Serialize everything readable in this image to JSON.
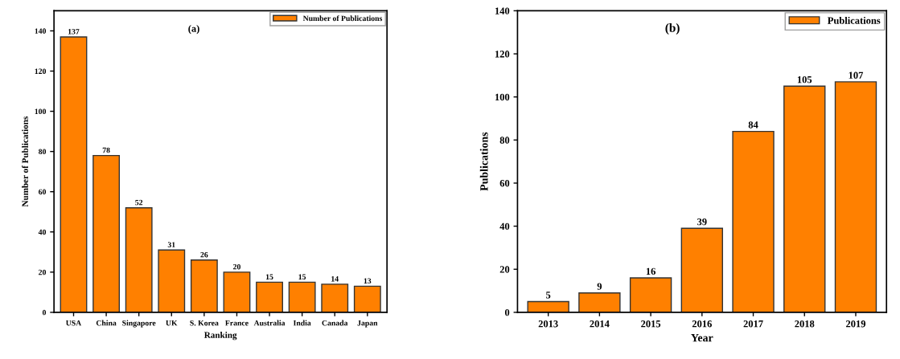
{
  "chart_data": [
    {
      "type": "bar",
      "xlabel": "Ranking",
      "ylabel": "Number of Publications",
      "annotations": [
        "(a)"
      ],
      "categories": [
        "USA",
        "China",
        "Singapore",
        "UK",
        "S. Korea",
        "France",
        "Australia",
        "India",
        "Canada",
        "Japan"
      ],
      "series": [
        {
          "name": "Number of Publications",
          "color": "#ff8000",
          "values": [
            137,
            78,
            52,
            31,
            26,
            20,
            15,
            15,
            14,
            13
          ]
        }
      ],
      "ylim": [
        0,
        150
      ],
      "yticks": [
        0,
        20,
        40,
        60,
        80,
        100,
        120,
        140
      ],
      "data_labels": true,
      "legend": "top right",
      "grid": false
    },
    {
      "type": "bar",
      "xlabel": "Year",
      "ylabel": "Publications",
      "annotations": [
        "(b)"
      ],
      "categories": [
        "2013",
        "2014",
        "2015",
        "2016",
        "2017",
        "2018",
        "2019"
      ],
      "series": [
        {
          "name": "Publications",
          "color": "#ff8000",
          "values": [
            5,
            9,
            16,
            39,
            84,
            105,
            107
          ]
        }
      ],
      "ylim": [
        0,
        140
      ],
      "yticks": [
        0,
        20,
        40,
        60,
        80,
        100,
        120,
        140
      ],
      "data_labels": true,
      "legend": "top right",
      "grid": false
    }
  ]
}
